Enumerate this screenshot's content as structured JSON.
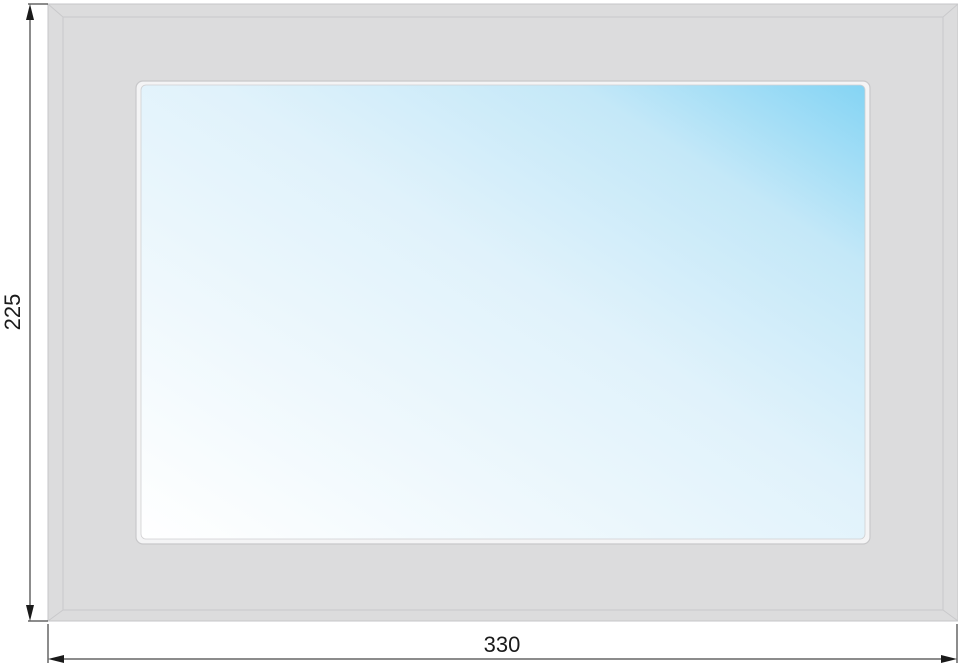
{
  "dimensions": {
    "height_label": "225",
    "width_label": "330"
  },
  "colors": {
    "frame": "#dcdcdd",
    "frame_highlight": "#f2f2f3",
    "frame_shadow": "#c4c4c6",
    "glass_light": "#ffffff",
    "glass_mid": "#d7eefa",
    "glass_deep": "#84d4f4",
    "dimension_line": "#1a1a1a"
  }
}
